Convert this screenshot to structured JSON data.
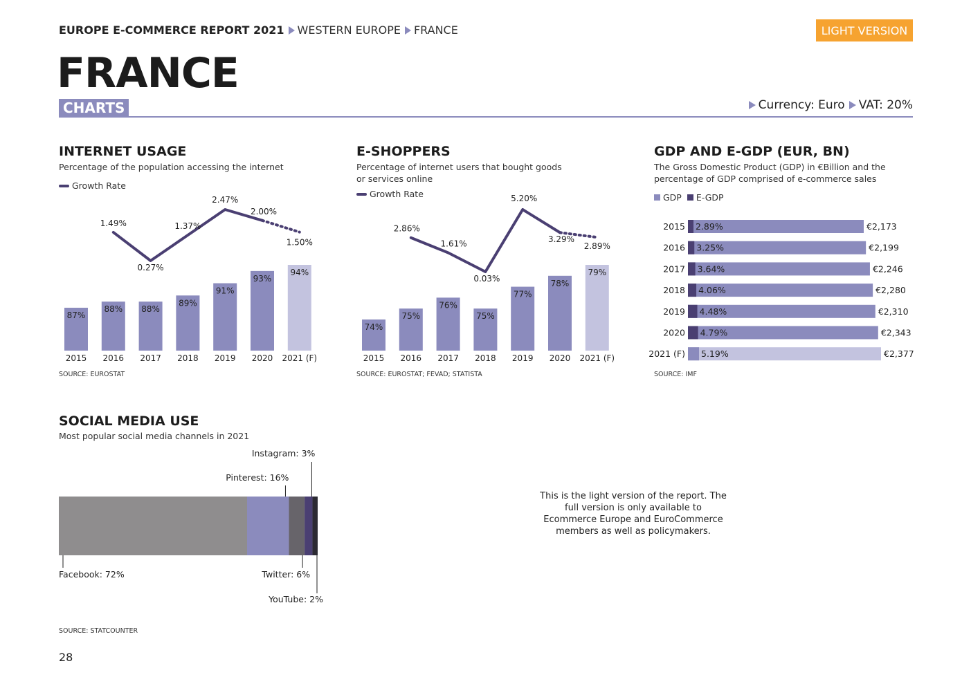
{
  "header": {
    "report": "EUROPE E-COMMERCE REPORT 2021",
    "region": "WESTERN EUROPE",
    "country_crumb": "FRANCE",
    "light_button": "LIGHT VERSION",
    "country": "FRANCE",
    "section_tag": "CHARTS",
    "currency": "Currency: Euro",
    "vat": "VAT: 20%"
  },
  "colors": {
    "bar": "#8b8bbd",
    "bar_forecast": "#c3c3df",
    "line": "#4a3f72",
    "egdp": "#4a3f72",
    "accent": "#f6a330"
  },
  "chart_data": [
    {
      "id": "internet",
      "type": "bar",
      "title": "INTERNET USAGE",
      "subtitle": "Percentage of the population accessing the internet",
      "legend": "Growth Rate",
      "source": "SOURCE: EUROSTAT",
      "categories": [
        "2015",
        "2016",
        "2017",
        "2018",
        "2019",
        "2020",
        "2021 (F)"
      ],
      "values": [
        87,
        88,
        88,
        89,
        91,
        93,
        94
      ],
      "value_labels": [
        "87%",
        "88%",
        "88%",
        "89%",
        "91%",
        "93%",
        "94%"
      ],
      "forecast_index": 6,
      "line_series": {
        "name": "Growth Rate",
        "categories": [
          "2016",
          "2017",
          "2018",
          "2019",
          "2020",
          "2021 (F)"
        ],
        "values": [
          1.49,
          0.27,
          1.37,
          2.47,
          2.0,
          1.5
        ],
        "labels": [
          "1.49%",
          "0.27%",
          "1.37%",
          "2.47%",
          "2.00%",
          "1.50%"
        ]
      }
    },
    {
      "id": "eshoppers",
      "type": "bar",
      "title": "E-SHOPPERS",
      "subtitle": "Percentage of internet users that bought goods or services online",
      "legend": "Growth Rate",
      "source": "SOURCE: EUROSTAT; FEVAD; STATISTA",
      "categories": [
        "2015",
        "2016",
        "2017",
        "2018",
        "2019",
        "2020",
        "2021 (F)"
      ],
      "values": [
        74,
        75,
        76,
        75,
        77,
        78,
        79
      ],
      "value_labels": [
        "74%",
        "75%",
        "76%",
        "75%",
        "77%",
        "78%",
        "79%"
      ],
      "forecast_index": 6,
      "line_series": {
        "name": "Growth Rate",
        "categories": [
          "2016",
          "2017",
          "2018",
          "2019",
          "2020",
          "2021 (F)"
        ],
        "values": [
          2.86,
          1.61,
          0.03,
          5.2,
          3.29,
          2.89
        ],
        "labels": [
          "2.86%",
          "1.61%",
          "0.03%",
          "5.20%",
          "3.29%",
          "2.89%"
        ]
      }
    },
    {
      "id": "gdp",
      "type": "bar",
      "orientation": "horizontal",
      "title": "GDP AND E-GDP (EUR, BN)",
      "subtitle": "The Gross Domestic Product (GDP) in €Billion and the percentage of GDP comprised of e-commerce sales",
      "legend": [
        "GDP",
        "E-GDP"
      ],
      "source": "SOURCE: IMF",
      "categories": [
        "2015",
        "2016",
        "2017",
        "2018",
        "2019",
        "2020",
        "2021 (F)"
      ],
      "series": [
        {
          "name": "GDP",
          "values": [
            2173,
            2199,
            2246,
            2280,
            2310,
            2343,
            2377
          ],
          "labels": [
            "€2,173",
            "€2,199",
            "€2,246",
            "€2,280",
            "€2,310",
            "€2,343",
            "€2,377"
          ]
        },
        {
          "name": "E-GDP",
          "values": [
            2.89,
            3.25,
            3.64,
            4.06,
            4.48,
            4.79,
            5.19
          ],
          "labels": [
            "2.89%",
            "3.25%",
            "3.64%",
            "4.06%",
            "4.48%",
            "4.79%",
            "5.19%"
          ]
        }
      ],
      "forecast_index": 6
    },
    {
      "id": "social",
      "type": "bar",
      "orientation": "stacked-horizontal",
      "title": "SOCIAL MEDIA USE",
      "subtitle": "Most popular social media channels in 2021",
      "source": "SOURCE: STATCOUNTER",
      "series": [
        {
          "name": "Facebook",
          "value": 72,
          "label": "Facebook: 72%",
          "color": "#8f8d8e"
        },
        {
          "name": "Pinterest",
          "value": 16,
          "label": "Pinterest: 16%",
          "color": "#8b8bbd"
        },
        {
          "name": "Twitter",
          "value": 6,
          "label": "Twitter: 6%",
          "color": "#67646a"
        },
        {
          "name": "Instagram",
          "value": 3,
          "label": "Instagram: 3%",
          "color": "#4a3f72"
        },
        {
          "name": "YouTube",
          "value": 2,
          "label": "YouTube: 2%",
          "color": "#2c2a33"
        }
      ]
    }
  ],
  "note": "This is the light version of the report. The full version is only available to Ecommerce Europe and EuroCommerce members as well as policymakers.",
  "page_number": "28"
}
